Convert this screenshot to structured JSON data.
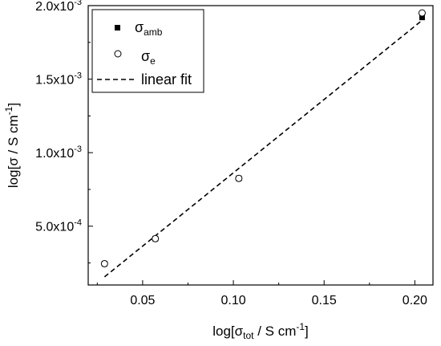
{
  "chart_data": {
    "type": "scatter",
    "xlabel": {
      "main": "log[σ",
      "sub": "tot",
      "rest": " / S cm",
      "sup": "-1",
      "end": "]"
    },
    "ylabel": {
      "main": "log[σ / S cm",
      "sup": "-1",
      "end": "]"
    },
    "xlim": [
      0.02,
      0.21
    ],
    "ylim": [
      0.0001,
      0.002
    ],
    "xticks": [
      {
        "value": 0.05,
        "label": "0.05"
      },
      {
        "value": 0.1,
        "label": "0.10"
      },
      {
        "value": 0.15,
        "label": "0.15"
      },
      {
        "value": 0.2,
        "label": "0.20"
      }
    ],
    "yticks": [
      {
        "value": 0.0005,
        "label": "5.0x10",
        "exp": "-4"
      },
      {
        "value": 0.001,
        "label": "1.0x10",
        "exp": "-3"
      },
      {
        "value": 0.0015,
        "label": "1.5x10",
        "exp": "-3"
      },
      {
        "value": 0.002,
        "label": "2.0x10",
        "exp": "-3"
      }
    ],
    "series": [
      {
        "name": "σ",
        "name_sub": "amb",
        "marker": "filled-square",
        "x": [
          0.029,
          0.057,
          0.103,
          0.204
        ],
        "y": [
          0.000245,
          0.000415,
          0.000825,
          0.00192
        ]
      },
      {
        "name": "σ",
        "name_sub": "e",
        "marker": "open-circle",
        "x": [
          0.029,
          0.057,
          0.103,
          0.204
        ],
        "y": [
          0.000245,
          0.000415,
          0.000825,
          0.00195
        ]
      },
      {
        "name": "linear fit",
        "marker": "dashed-line",
        "x": [
          0.029,
          0.204
        ],
        "y": [
          0.000155,
          0.0019
        ]
      }
    ],
    "legend_position": "top-left",
    "grid": false
  }
}
